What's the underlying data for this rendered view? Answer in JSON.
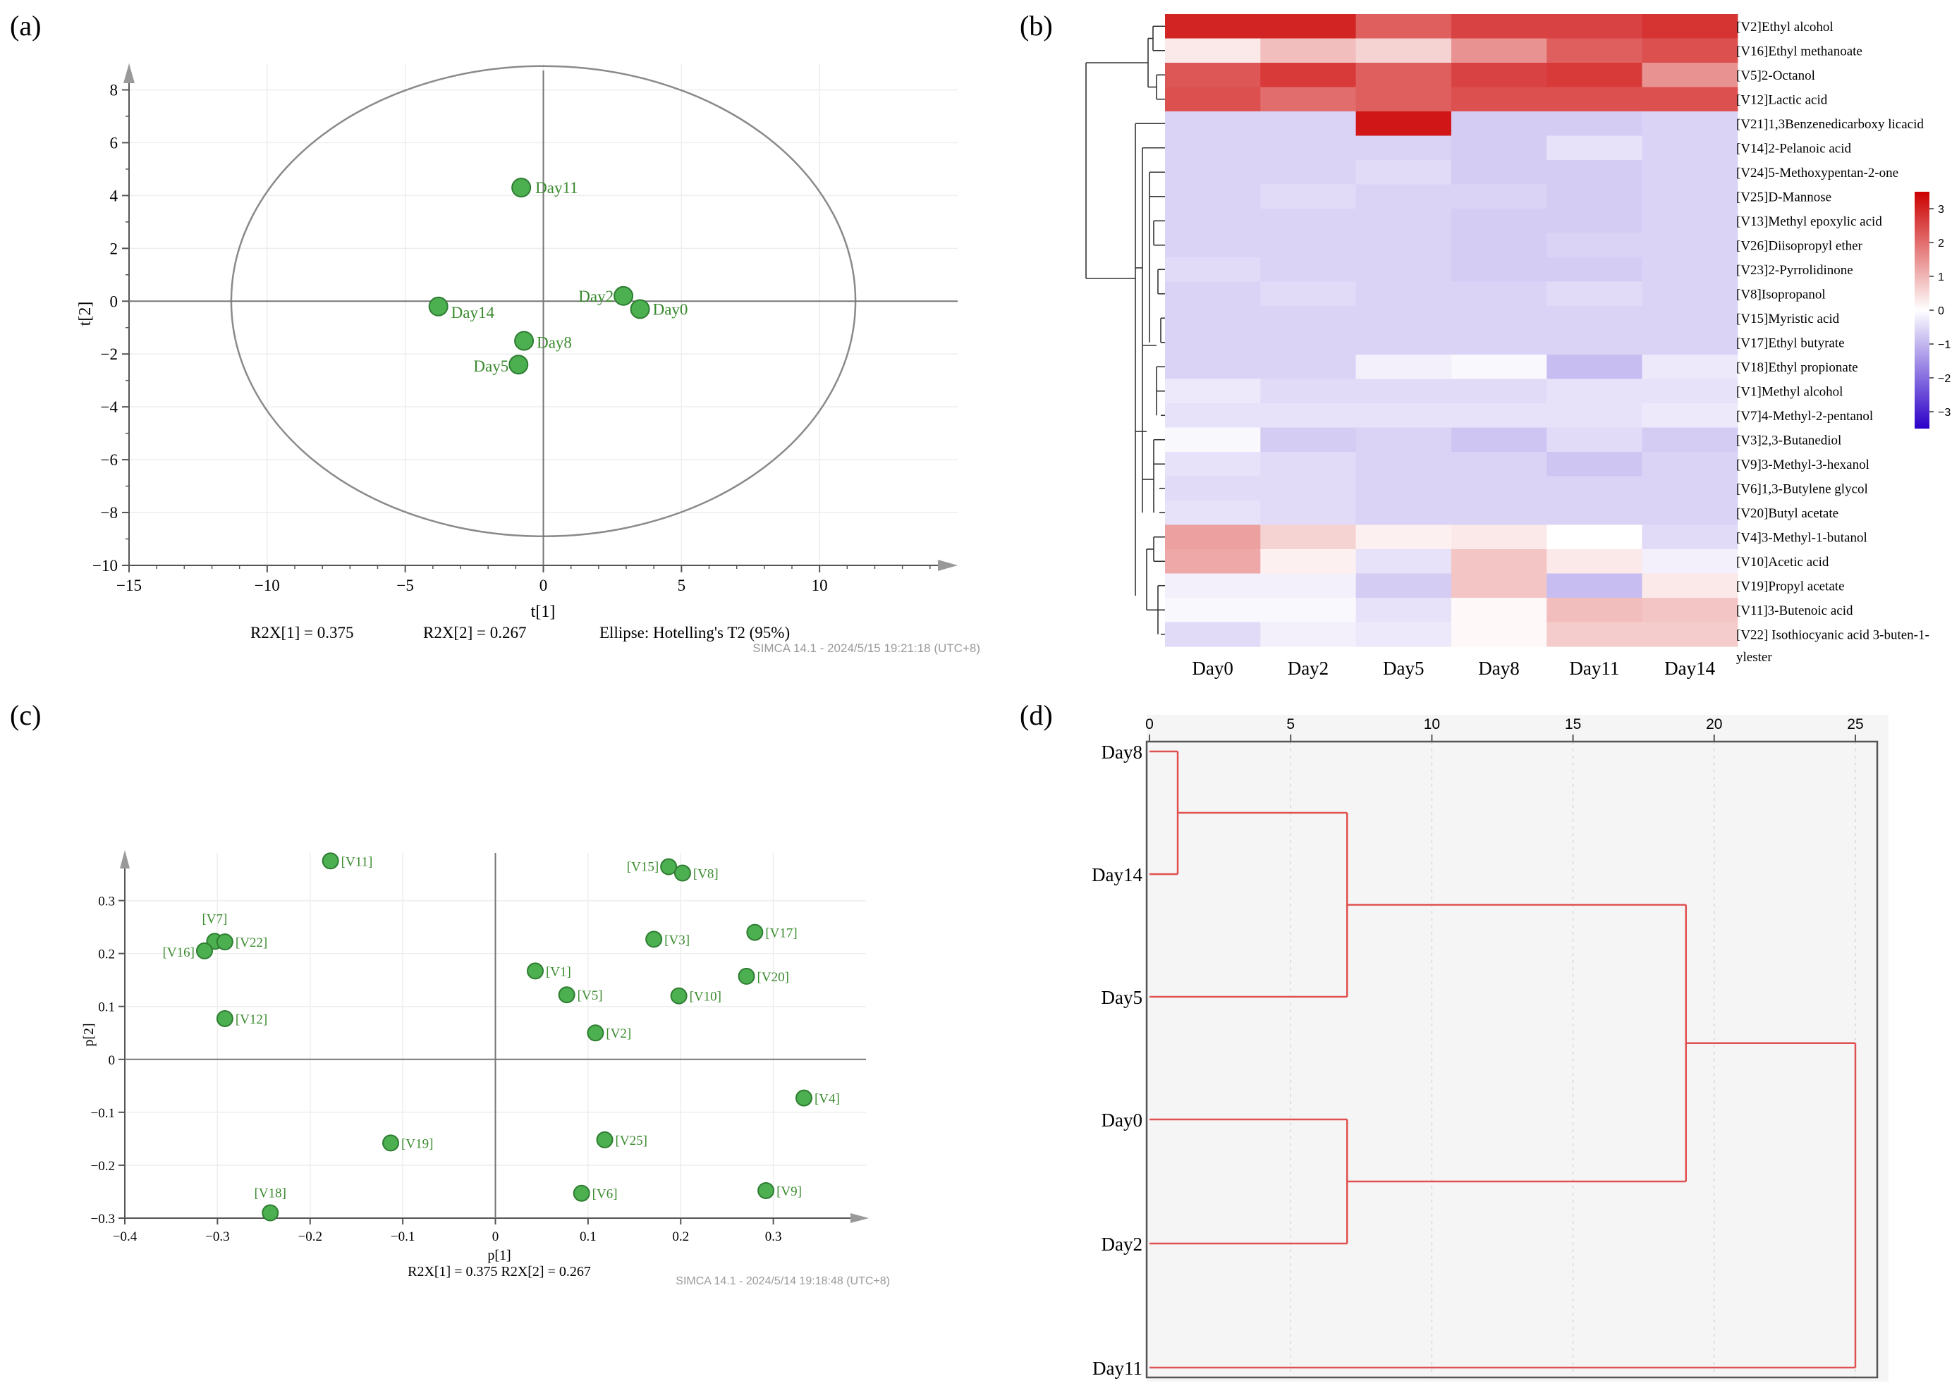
{
  "panels": {
    "a": {
      "letter": "(a)"
    },
    "b": {
      "letter": "(b)"
    },
    "c": {
      "letter": "(c)"
    },
    "d": {
      "letter": "(d)"
    }
  },
  "colors": {
    "point_fill": "#4caf50",
    "point_stroke": "#2e7d32",
    "point_label": "#3a8a2e",
    "axis": "#555555",
    "dendro_line": "#e05050",
    "heat_high": "#cc0000",
    "heat_mid": "#ffffff",
    "heat_low": "#2b00c8"
  },
  "chart_data": [
    {
      "id": "a",
      "type": "scatter",
      "xlabel": "t[1]",
      "ylabel": "t[2]",
      "xlim": [
        -15,
        15
      ],
      "ylim": [
        -10,
        9
      ],
      "xticks": [
        -15,
        -10,
        -5,
        0,
        5,
        10
      ],
      "yticks": [
        -10,
        -8,
        -6,
        -4,
        -2,
        0,
        2,
        4,
        6,
        8
      ],
      "ellipse": {
        "rx": 11.3,
        "ry": 8.9
      },
      "points": [
        {
          "label": "Day11",
          "x": -0.8,
          "y": 4.3
        },
        {
          "label": "Day2",
          "x": 2.9,
          "y": 0.2
        },
        {
          "label": "Day0",
          "x": 3.5,
          "y": -0.3
        },
        {
          "label": "Day14",
          "x": -3.8,
          "y": -0.2
        },
        {
          "label": "Day8",
          "x": -0.7,
          "y": -1.5
        },
        {
          "label": "Day5",
          "x": -0.9,
          "y": -2.4
        }
      ],
      "footer": {
        "r2x1": "R2X[1] = 0.375",
        "r2x2": "R2X[2] = 0.267",
        "ellipse": "Ellipse: Hotelling's T2 (95%)",
        "simca": "SIMCA 14.1 - 2024/5/15 19:21:18 (UTC+8)"
      }
    },
    {
      "id": "b",
      "type": "heatmap",
      "columns": [
        "Day0",
        "Day2",
        "Day5",
        "Day8",
        "Day11",
        "Day14"
      ],
      "rows": [
        "[V2]Ethyl alcohol",
        "[V16]Ethyl methanoate",
        "[V5]2-Octanol",
        "[V12]Lactic acid",
        "[V21]1,3Benzenedicarboxy licacid",
        "[V14]2-Pelanoic acid",
        "[V24]5-Methoxypentan-2-one",
        "[V25]D-Mannose",
        "[V13]Methyl epoxylic acid",
        "[V26]Diisopropyl ether",
        "[V23]2-Pyrrolidinone",
        "[V8]Isopropanol",
        "[V15]Myristic acid",
        "[V17]Ethyl butyrate",
        "[V18]Ethyl propionate",
        "[V1]Methyl alcohol",
        "[V7]4-Methyl-2-pentanol",
        "[V3]2,3-Butanediol",
        "[V9]3-Methyl-3-hexanol",
        "[V6]1,3-Butylene glycol",
        "[V20]Butyl acetate",
        "[V4]3-Methyl-1-butanol",
        "[V10]Acetic acid",
        "[V19]Propyl acetate",
        "[V11]3-Butenoic acid",
        "[V22] Isothiocyanic acid 3-buten-1-"
      ],
      "row_label_continuation": "ylester",
      "values": [
        [
          3.0,
          3.0,
          2.2,
          2.6,
          2.6,
          2.8
        ],
        [
          0.3,
          0.9,
          0.6,
          1.5,
          2.2,
          2.4
        ],
        [
          2.3,
          2.7,
          2.2,
          2.6,
          2.7,
          1.5
        ],
        [
          2.4,
          2.0,
          2.2,
          2.4,
          2.4,
          2.4
        ],
        [
          -0.6,
          -0.6,
          3.2,
          -0.7,
          -0.7,
          -0.6
        ],
        [
          -0.6,
          -0.6,
          -0.6,
          -0.7,
          -0.4,
          -0.6
        ],
        [
          -0.6,
          -0.6,
          -0.5,
          -0.7,
          -0.7,
          -0.6
        ],
        [
          -0.6,
          -0.5,
          -0.6,
          -0.6,
          -0.7,
          -0.6
        ],
        [
          -0.6,
          -0.6,
          -0.6,
          -0.7,
          -0.7,
          -0.6
        ],
        [
          -0.6,
          -0.6,
          -0.6,
          -0.7,
          -0.6,
          -0.6
        ],
        [
          -0.5,
          -0.6,
          -0.6,
          -0.7,
          -0.7,
          -0.6
        ],
        [
          -0.6,
          -0.5,
          -0.6,
          -0.6,
          -0.5,
          -0.6
        ],
        [
          -0.6,
          -0.6,
          -0.6,
          -0.6,
          -0.6,
          -0.6
        ],
        [
          -0.6,
          -0.6,
          -0.6,
          -0.6,
          -0.6,
          -0.6
        ],
        [
          -0.6,
          -0.6,
          -0.2,
          -0.1,
          -0.9,
          -0.3
        ],
        [
          -0.3,
          -0.5,
          -0.5,
          -0.5,
          -0.4,
          -0.4
        ],
        [
          -0.4,
          -0.4,
          -0.4,
          -0.4,
          -0.4,
          -0.3
        ],
        [
          -0.1,
          -0.7,
          -0.6,
          -0.8,
          -0.5,
          -0.7
        ],
        [
          -0.4,
          -0.5,
          -0.6,
          -0.6,
          -0.8,
          -0.6
        ],
        [
          -0.5,
          -0.5,
          -0.6,
          -0.6,
          -0.6,
          -0.6
        ],
        [
          -0.4,
          -0.5,
          -0.6,
          -0.6,
          -0.6,
          -0.6
        ],
        [
          1.3,
          0.6,
          0.2,
          0.3,
          0.0,
          -0.5
        ],
        [
          1.2,
          0.2,
          -0.4,
          0.8,
          0.3,
          -0.2
        ],
        [
          -0.2,
          -0.2,
          -0.7,
          0.8,
          -0.9,
          0.3
        ],
        [
          -0.1,
          -0.1,
          -0.4,
          0.1,
          0.9,
          0.8
        ],
        [
          -0.5,
          -0.2,
          -0.3,
          0.1,
          0.7,
          0.7
        ]
      ],
      "scale": {
        "min": -3.5,
        "max": 3.5,
        "ticks": [
          3,
          2,
          1,
          0,
          -1,
          -2,
          -3
        ]
      }
    },
    {
      "id": "c",
      "type": "scatter",
      "xlabel": "p[1]",
      "ylabel": "p[2]",
      "xlim": [
        -0.4,
        0.4
      ],
      "ylim": [
        -0.3,
        0.39
      ],
      "xticks": [
        -0.4,
        -0.3,
        -0.2,
        -0.1,
        0,
        0.1,
        0.2,
        0.3
      ],
      "yticks": [
        -0.3,
        -0.2,
        -0.1,
        0,
        0.1,
        0.2,
        0.3
      ],
      "points": [
        {
          "label": "[V11]",
          "x": -0.178,
          "y": 0.375
        },
        {
          "label": "[V15]",
          "x": 0.187,
          "y": 0.364
        },
        {
          "label": "[V8]",
          "x": 0.202,
          "y": 0.352
        },
        {
          "label": "[V7]",
          "x": -0.303,
          "y": 0.223
        },
        {
          "label": "[V22]",
          "x": -0.292,
          "y": 0.222
        },
        {
          "label": "[V16]",
          "x": -0.314,
          "y": 0.205
        },
        {
          "label": "[V17]",
          "x": 0.28,
          "y": 0.24
        },
        {
          "label": "[V3]",
          "x": 0.171,
          "y": 0.227
        },
        {
          "label": "[V1]",
          "x": 0.043,
          "y": 0.167
        },
        {
          "label": "[V20]",
          "x": 0.271,
          "y": 0.157
        },
        {
          "label": "[V5]",
          "x": 0.077,
          "y": 0.122
        },
        {
          "label": "[V10]",
          "x": 0.198,
          "y": 0.12
        },
        {
          "label": "[V12]",
          "x": -0.292,
          "y": 0.077
        },
        {
          "label": "[V2]",
          "x": 0.108,
          "y": 0.05
        },
        {
          "label": "[V4]",
          "x": 0.333,
          "y": -0.073
        },
        {
          "label": "[V25]",
          "x": 0.118,
          "y": -0.152
        },
        {
          "label": "[V19]",
          "x": -0.113,
          "y": -0.158
        },
        {
          "label": "[V6]",
          "x": 0.093,
          "y": -0.253
        },
        {
          "label": "[V9]",
          "x": 0.292,
          "y": -0.248
        },
        {
          "label": "[V18]",
          "x": -0.243,
          "y": -0.29
        }
      ],
      "footer": {
        "r2x": "R2X[1] = 0.375 R2X[2] = 0.267",
        "simca": "SIMCA 14.1 - 2024/5/14 19:18:48 (UTC+8)"
      }
    },
    {
      "id": "d",
      "type": "dendrogram",
      "xlim": [
        0,
        26
      ],
      "xticks": [
        0,
        5,
        10,
        15,
        20,
        25
      ],
      "leaves": [
        "Day8",
        "Day14",
        "Day5",
        "Day0",
        "Day2",
        "Day11"
      ],
      "merges": [
        {
          "a": "Day8",
          "b": "Day14",
          "height": 1
        },
        {
          "a": "Day8+Day14",
          "b": "Day5",
          "height": 7
        },
        {
          "a": "Day0",
          "b": "Day2",
          "height": 7
        },
        {
          "a": "Day8+Day14+Day5",
          "b": "Day0+Day2",
          "height": 19
        },
        {
          "a": "all-but-Day11",
          "b": "Day11",
          "height": 25
        }
      ]
    }
  ]
}
